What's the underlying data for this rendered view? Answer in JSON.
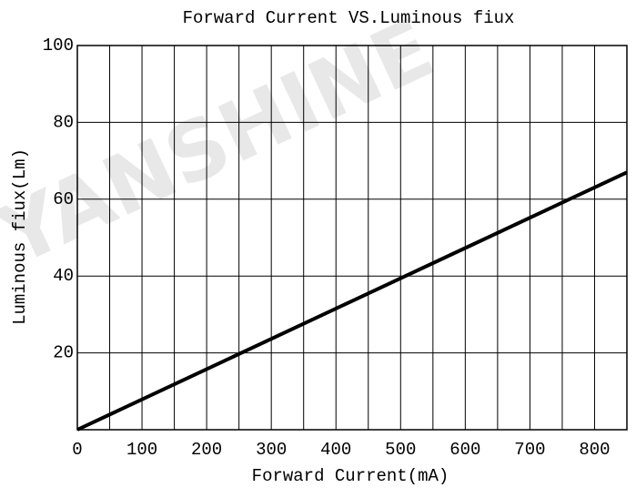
{
  "chart_data": {
    "type": "line",
    "title": "Forward Current VS.Luminous fiux",
    "x_label": "Forward Current(mA)",
    "y_label": "Luminous fiux(Lm)",
    "watermark": "YANSHINE",
    "x": [
      0,
      850
    ],
    "series": [
      {
        "name": "Luminous fiux",
        "color": "#000000",
        "values": [
          0,
          67
        ]
      }
    ],
    "xlim": [
      0,
      850
    ],
    "ylim": [
      0,
      100
    ],
    "xticks": [
      0,
      100,
      200,
      300,
      400,
      500,
      600,
      700,
      800
    ],
    "xminor_grid": [
      50,
      150,
      250,
      350,
      450,
      550,
      650,
      750,
      850
    ],
    "yticks": [
      20,
      40,
      60,
      80,
      100
    ],
    "grid": true
  }
}
